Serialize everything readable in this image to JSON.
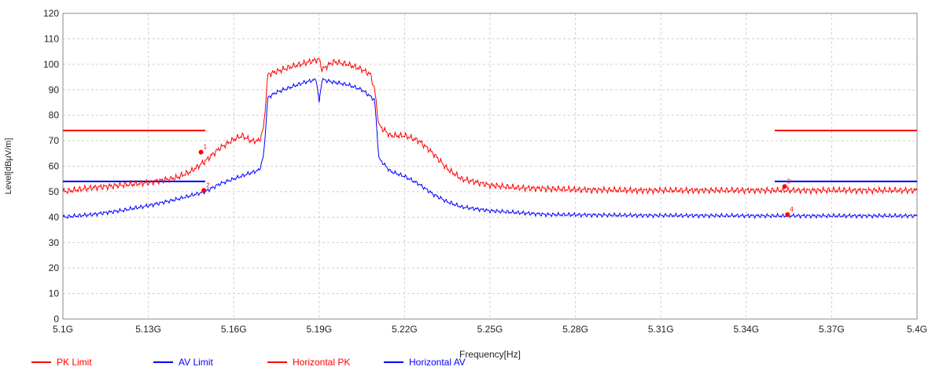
{
  "chart_data": {
    "type": "line",
    "title": "",
    "xlabel": "Frequency[Hz]",
    "ylabel": "Level[dBμV/m]",
    "xlim": [
      5.1,
      5.4
    ],
    "ylim": [
      0,
      120
    ],
    "grid": true,
    "legend_position": "bottom-left",
    "x_tick_labels": [
      "5.1G",
      "5.13G",
      "5.16G",
      "5.19G",
      "5.22G",
      "5.25G",
      "5.28G",
      "5.31G",
      "5.34G",
      "5.37G",
      "5.4G"
    ],
    "x_tick_values": [
      5.1,
      5.13,
      5.16,
      5.19,
      5.22,
      5.25,
      5.28,
      5.31,
      5.34,
      5.37,
      5.4
    ],
    "y_tick_labels": [
      "0",
      "10",
      "20",
      "30",
      "40",
      "50",
      "60",
      "70",
      "80",
      "90",
      "100",
      "110",
      "120"
    ],
    "y_tick_values": [
      0,
      10,
      20,
      30,
      40,
      50,
      60,
      70,
      80,
      90,
      100,
      110,
      120
    ],
    "series": [
      {
        "name": "PK Limit",
        "color": "#ff0000",
        "style": "limit",
        "segments": [
          {
            "x": [
              5.1,
              5.15
            ],
            "y": [
              74,
              74
            ]
          },
          {
            "x": [
              5.35,
              5.4
            ],
            "y": [
              74,
              74
            ]
          }
        ]
      },
      {
        "name": "AV Limit",
        "color": "#0000ff",
        "style": "limit",
        "segments": [
          {
            "x": [
              5.1,
              5.15
            ],
            "y": [
              54,
              54
            ]
          },
          {
            "x": [
              5.35,
              5.4
            ],
            "y": [
              54,
              54
            ]
          }
        ]
      },
      {
        "name": "Horizontal PK",
        "color": "#ff0000",
        "style": "trace",
        "x": [
          5.1,
          5.11,
          5.12,
          5.13,
          5.14,
          5.145,
          5.15,
          5.155,
          5.16,
          5.163,
          5.166,
          5.169,
          5.1705,
          5.172,
          5.18,
          5.19,
          5.191,
          5.195,
          5.2,
          5.205,
          5.208,
          5.2095,
          5.211,
          5.215,
          5.22,
          5.225,
          5.23,
          5.235,
          5.24,
          5.25,
          5.26,
          5.28,
          5.3,
          5.35,
          5.4
        ],
        "y": [
          50,
          51.5,
          52.5,
          53.5,
          55.5,
          58,
          62,
          67,
          70.5,
          72,
          70,
          70,
          75,
          96,
          99,
          102,
          98,
          101,
          100,
          98,
          96,
          90,
          76,
          72,
          72,
          70,
          65,
          59,
          55,
          52.5,
          51.5,
          50.8,
          50.5,
          50.5,
          50.5
        ]
      },
      {
        "name": "Horizontal AV",
        "color": "#0000ff",
        "style": "trace",
        "x": [
          5.1,
          5.11,
          5.12,
          5.13,
          5.14,
          5.15,
          5.155,
          5.16,
          5.165,
          5.169,
          5.1705,
          5.172,
          5.175,
          5.18,
          5.185,
          5.189,
          5.19,
          5.191,
          5.195,
          5.2,
          5.205,
          5.2095,
          5.211,
          5.215,
          5.22,
          5.225,
          5.23,
          5.235,
          5.24,
          5.25,
          5.27,
          5.3,
          5.35,
          5.4
        ],
        "y": [
          40,
          41,
          42.5,
          44.5,
          47,
          50,
          53,
          55,
          57,
          58.5,
          64,
          87,
          89,
          91,
          93,
          94,
          85,
          94,
          93,
          92,
          90,
          86,
          63,
          58,
          56,
          53,
          49,
          46,
          44,
          42.5,
          41,
          40.7,
          40.5,
          40.5
        ]
      }
    ],
    "markers": [
      {
        "label": "1",
        "x": 5.1485,
        "y": 65.5,
        "color": "#ff0000"
      },
      {
        "label": "2",
        "x": 5.1495,
        "y": 50.5,
        "color": "#ff0000"
      },
      {
        "label": "3",
        "x": 5.3535,
        "y": 52,
        "color": "#ff0000"
      },
      {
        "label": "4",
        "x": 5.3545,
        "y": 41,
        "color": "#ff0000"
      }
    ]
  }
}
